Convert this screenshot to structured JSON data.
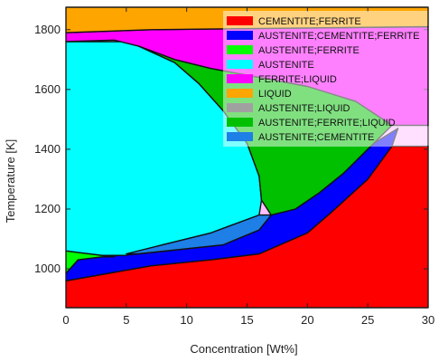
{
  "chart_data": {
    "type": "area",
    "title": "",
    "xlabel": "Concentration [Wt%]",
    "ylabel": "Temperature [K]",
    "xlim": [
      0,
      30
    ],
    "ylim": [
      870,
      1875
    ],
    "x_ticks": [
      0,
      5,
      10,
      15,
      20,
      25,
      30
    ],
    "y_ticks": [
      1000,
      1200,
      1400,
      1600,
      1800
    ],
    "grid": false,
    "legend_position": "top-right",
    "series": [
      {
        "name": "CEMENTITE;FERRITE",
        "color": "#ff0000",
        "polygon": [
          [
            0,
            870
          ],
          [
            30,
            870
          ],
          [
            30,
            1410
          ],
          [
            27,
            1410
          ],
          [
            25,
            1300
          ],
          [
            22,
            1190
          ],
          [
            20,
            1120
          ],
          [
            16,
            1050
          ],
          [
            12,
            1030
          ],
          [
            7,
            1010
          ],
          [
            0,
            960
          ]
        ]
      },
      {
        "name": "AUSTENITE;CEMENTITE;FERRITE",
        "color": "#0000ff",
        "polygon": [
          [
            0,
            960
          ],
          [
            7,
            1010
          ],
          [
            12,
            1030
          ],
          [
            16,
            1050
          ],
          [
            20,
            1120
          ],
          [
            22,
            1190
          ],
          [
            25,
            1300
          ],
          [
            27,
            1410
          ],
          [
            27.5,
            1470
          ],
          [
            25.5,
            1420
          ],
          [
            23,
            1320
          ],
          [
            21,
            1255
          ],
          [
            19,
            1200
          ],
          [
            17,
            1180
          ],
          [
            16,
            1130
          ],
          [
            13,
            1080
          ],
          [
            6,
            1050
          ],
          [
            3,
            1040
          ],
          [
            1,
            1030
          ],
          [
            0,
            985
          ]
        ]
      },
      {
        "name": "AUSTENITE;FERRITE",
        "color": "#00ff00",
        "polygon": [
          [
            0,
            985
          ],
          [
            0,
            1060
          ],
          [
            2,
            1050
          ],
          [
            4,
            1040
          ],
          [
            3,
            1040
          ],
          [
            1,
            1030
          ]
        ]
      },
      {
        "name": "AUSTENITE",
        "color": "#00ffff",
        "polygon": [
          [
            0,
            1060
          ],
          [
            1,
            1055
          ],
          [
            3,
            1045
          ],
          [
            5,
            1045
          ],
          [
            8,
            1080
          ],
          [
            12,
            1120
          ],
          [
            16,
            1180
          ],
          [
            16.2,
            1230
          ],
          [
            16,
            1310
          ],
          [
            15,
            1420
          ],
          [
            13,
            1530
          ],
          [
            11,
            1620
          ],
          [
            9,
            1690
          ],
          [
            6,
            1745
          ],
          [
            5,
            1760
          ],
          [
            0,
            1760
          ]
        ]
      },
      {
        "name": "FERRITE;LIQUID",
        "color": "#ff00ff",
        "polygon": [
          [
            0,
            1760
          ],
          [
            4,
            1765
          ],
          [
            6,
            1745
          ],
          [
            9,
            1700
          ],
          [
            12,
            1670
          ],
          [
            16,
            1640
          ],
          [
            20,
            1610
          ],
          [
            24,
            1560
          ],
          [
            27,
            1480
          ],
          [
            30,
            1480
          ],
          [
            30,
            1810
          ],
          [
            7,
            1800
          ],
          [
            0,
            1790
          ]
        ]
      },
      {
        "name": "LIQUID",
        "color": "#ffa500",
        "polygon": [
          [
            0,
            1790
          ],
          [
            7,
            1800
          ],
          [
            30,
            1810
          ],
          [
            30,
            1875
          ],
          [
            0,
            1875
          ]
        ]
      },
      {
        "name": "AUSTENITE;LIQUID",
        "color": "#a0a0a0",
        "polygon": []
      },
      {
        "name": "AUSTENITE;FERRITE;LIQUID",
        "color": "#00c000",
        "polygon": [
          [
            6,
            1745
          ],
          [
            9,
            1700
          ],
          [
            12,
            1670
          ],
          [
            16,
            1640
          ],
          [
            20,
            1610
          ],
          [
            24,
            1560
          ],
          [
            27,
            1480
          ],
          [
            25.5,
            1420
          ],
          [
            23,
            1320
          ],
          [
            21,
            1255
          ],
          [
            19,
            1200
          ],
          [
            17,
            1180
          ],
          [
            16.2,
            1230
          ],
          [
            16,
            1310
          ],
          [
            15,
            1420
          ],
          [
            13,
            1530
          ],
          [
            11,
            1620
          ],
          [
            9,
            1690
          ]
        ]
      },
      {
        "name": "AUSTENITE;CEMENTITE",
        "color": "#1e7fe6",
        "polygon": [
          [
            5,
            1050
          ],
          [
            8,
            1080
          ],
          [
            12,
            1120
          ],
          [
            16,
            1180
          ],
          [
            17,
            1180
          ],
          [
            16,
            1130
          ],
          [
            13,
            1080
          ],
          [
            6,
            1050
          ]
        ]
      }
    ]
  }
}
